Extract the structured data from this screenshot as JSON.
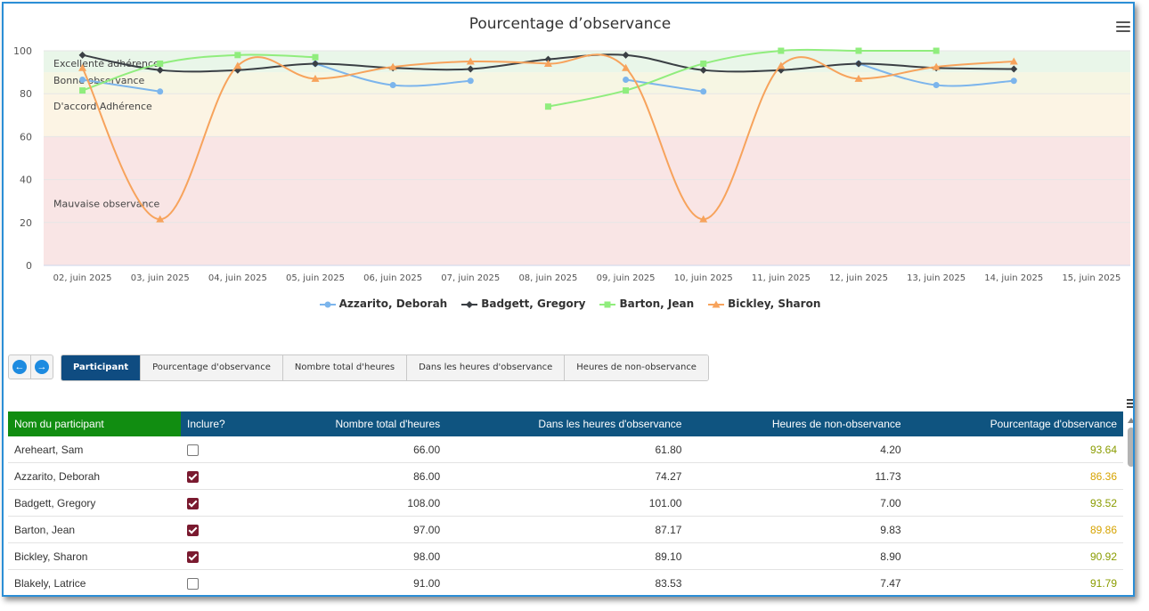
{
  "chart": {
    "title": "Pourcentage d’observance",
    "menu_icon": "hamburger-icon",
    "bands": [
      {
        "label": "Excellente adhérence",
        "from": 90,
        "to": 100,
        "color": "#e9f6e9"
      },
      {
        "label": "Bonne observance",
        "from": 80,
        "to": 90,
        "color": "#f6f6e3"
      },
      {
        "label": "D'accord Adhérence",
        "from": 60,
        "to": 80,
        "color": "#fcf4e4"
      },
      {
        "label": "Mauvaise observance",
        "from": 0,
        "to": 60,
        "color": "#f9e5e5"
      }
    ],
    "y_ticks": [
      "0",
      "20",
      "40",
      "60",
      "80",
      "100"
    ],
    "ylim": [
      0,
      100
    ]
  },
  "chart_data": {
    "type": "line",
    "title": "Pourcentage d’observance",
    "categories": [
      "02, juin 2025",
      "03, juin 2025",
      "04, juin 2025",
      "05, juin 2025",
      "06, juin 2025",
      "07, juin 2025",
      "08, juin 2025",
      "09, juin 2025",
      "10, juin 2025",
      "11, juin 2025",
      "12, juin 2025",
      "13, juin 2025",
      "14, juin 2025",
      "15, juin 2025"
    ],
    "ylim": [
      0,
      100
    ],
    "legend_position": "bottom",
    "series": [
      {
        "name": "Azzarito, Deborah",
        "color": "#7cb5ec",
        "marker": "circle",
        "values": [
          86.5,
          81,
          null,
          94,
          84,
          86,
          null,
          86.5,
          81,
          null,
          94,
          84,
          86,
          null
        ]
      },
      {
        "name": "Badgett, Gregory",
        "color": "#3a3f44",
        "marker": "diamond",
        "values": [
          98,
          91,
          91,
          94,
          92,
          91.5,
          96,
          98,
          91,
          91,
          94,
          92,
          91.5,
          null
        ]
      },
      {
        "name": "Barton, Jean",
        "color": "#90ed7d",
        "marker": "square",
        "values": [
          81.5,
          94,
          98,
          97,
          null,
          null,
          74,
          81.5,
          94,
          100,
          100,
          100,
          null,
          null
        ]
      },
      {
        "name": "Bickley, Sharon",
        "color": "#f7a35c",
        "marker": "triangle",
        "values": [
          92,
          21.5,
          93,
          87,
          92.5,
          95,
          94,
          92,
          21.5,
          93,
          87,
          92.5,
          95,
          null
        ]
      }
    ]
  },
  "nav": {
    "prev_icon": "arrow-left-icon",
    "next_icon": "arrow-right-icon"
  },
  "tabs": [
    {
      "label": "Participant",
      "active": true
    },
    {
      "label": "Pourcentage d'observance",
      "active": false
    },
    {
      "label": "Nombre total d'heures",
      "active": false
    },
    {
      "label": "Dans les heures d'observance",
      "active": false
    },
    {
      "label": "Heures de non-observance",
      "active": false
    }
  ],
  "table": {
    "headers": [
      "Nom du participant",
      "Inclure?",
      "Nombre total d'heures",
      "Dans les heures d'observance",
      "Heures de non-observance",
      "Pourcentage d'observance"
    ],
    "rows": [
      {
        "name": "Areheart, Sam",
        "include": false,
        "total": "66.00",
        "within": "61.80",
        "non": "4.20",
        "pct": "93.64",
        "pct_color": "olive"
      },
      {
        "name": "Azzarito, Deborah",
        "include": true,
        "total": "86.00",
        "within": "74.27",
        "non": "11.73",
        "pct": "86.36",
        "pct_color": "gold"
      },
      {
        "name": "Badgett, Gregory",
        "include": true,
        "total": "108.00",
        "within": "101.00",
        "non": "7.00",
        "pct": "93.52",
        "pct_color": "olive"
      },
      {
        "name": "Barton, Jean",
        "include": true,
        "total": "97.00",
        "within": "87.17",
        "non": "9.83",
        "pct": "89.86",
        "pct_color": "gold"
      },
      {
        "name": "Bickley, Sharon",
        "include": true,
        "total": "98.00",
        "within": "89.10",
        "non": "8.90",
        "pct": "90.92",
        "pct_color": "olive"
      },
      {
        "name": "Blakely, Latrice",
        "include": false,
        "total": "91.00",
        "within": "83.53",
        "non": "7.47",
        "pct": "91.79",
        "pct_color": "olive"
      }
    ]
  }
}
